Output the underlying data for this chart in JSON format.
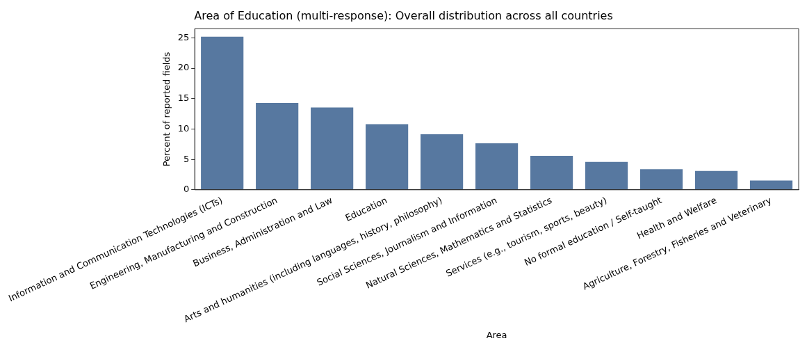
{
  "chart_data": {
    "type": "bar",
    "title": "Area of Education (multi-response): Overall distribution across all countries",
    "xlabel": "Area",
    "ylabel": "Percent of reported fields",
    "categories": [
      "Information and Communication Technologies (ICTs)",
      "Engineering, Manufacturing and Construction",
      "Business, Administration and Law",
      "Education",
      "Arts and humanities (including languages, history, philosophy)",
      "Social Sciences, Journalism and Information",
      "Natural Sciences, Mathematics and Statistics",
      "Services (e.g., tourism, sports, beauty)",
      "No formal education / Self-taught",
      "Health and Welfare",
      "Agriculture, Forestry, Fisheries and Veterinary"
    ],
    "values": [
      25.3,
      14.4,
      13.65,
      10.9,
      9.25,
      7.75,
      5.7,
      4.7,
      3.5,
      3.2,
      1.65
    ],
    "color": "#5778a0",
    "ylim": [
      0,
      26.5
    ],
    "yticks": [
      0,
      5,
      10,
      15,
      20,
      25
    ],
    "grid": false,
    "legend": false
  }
}
